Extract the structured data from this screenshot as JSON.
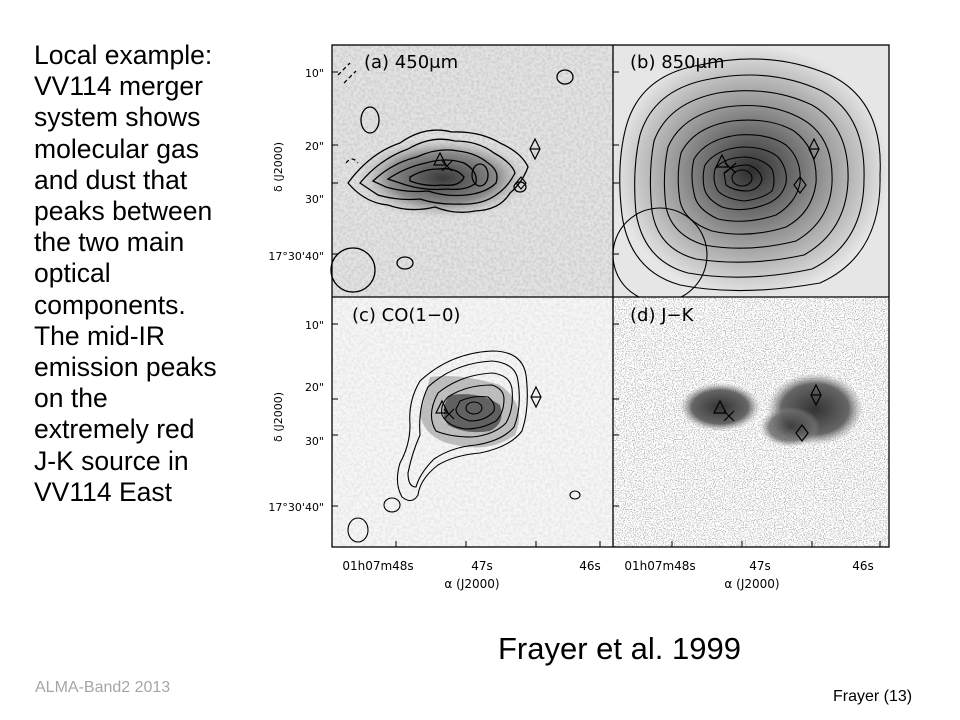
{
  "slide": {
    "body_lines": [
      "Local example:",
      "VV114 merger",
      "system shows",
      "molecular gas",
      "and dust that",
      "peaks between",
      "the two main",
      "optical",
      "components.",
      "The mid-IR",
      "emission peaks",
      "on the",
      "extremely red",
      "J-K source in",
      "VV114 East"
    ],
    "citation": "Frayer et al. 1999",
    "footer_left": "ALMA-Band2 2013",
    "footer_right": "Frayer (13)"
  },
  "figure": {
    "panels": [
      {
        "label": "(a) 450μm"
      },
      {
        "label": "(b) 850μm"
      },
      {
        "label": "(c) CO(1−0)"
      },
      {
        "label": "(d) J−K"
      }
    ],
    "y_ticks": [
      "10\"",
      "20\"",
      "30\"",
      "17°30'40\""
    ],
    "y_axis_label": "δ (J2000)",
    "x_ticks": [
      "01h07m48s",
      "47s",
      "46s"
    ],
    "x_axis_label": "α (J2000)"
  }
}
